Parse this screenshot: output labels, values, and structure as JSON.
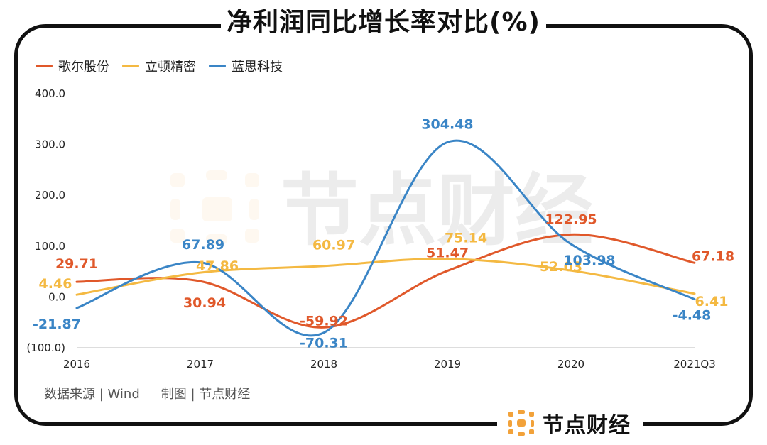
{
  "title": "净利润同比增长率对比(%)",
  "legend": [
    "歌尔股份",
    "立顿精密",
    "蓝思科技"
  ],
  "source_text": "数据来源 | Wind",
  "made_by_text": "制图 | 节点财经",
  "brand_name": "节点财经",
  "watermark_text": "节点财经",
  "colors": {
    "歌尔股份": "#e0582a",
    "立顿精密": "#f4b942",
    "蓝思科技": "#3a85c6",
    "brand_orange": "#f2a23a"
  },
  "chart_data": {
    "type": "line",
    "title": "净利润同比增长率对比(%)",
    "categories": [
      "2016",
      "2017",
      "2018",
      "2019",
      "2020",
      "2021Q3"
    ],
    "y_tick_labels": [
      "(100.0)",
      "0.0",
      "100.0",
      "200.0",
      "300.0",
      "400.0"
    ],
    "y_ticks": [
      -100,
      0,
      100,
      200,
      300,
      400
    ],
    "ylim": [
      -100,
      400
    ],
    "grid": false,
    "legend_position": "top-left",
    "series": [
      {
        "name": "歌尔股份",
        "values": [
          29.71,
          30.94,
          -59.92,
          51.47,
          122.95,
          67.18
        ],
        "labels": [
          "29.71",
          "30.94",
          "-59.92",
          "51.47",
          "122.95",
          "67.18"
        ]
      },
      {
        "name": "立顿精密",
        "values": [
          4.46,
          47.86,
          60.97,
          75.14,
          52.03,
          6.41
        ],
        "labels": [
          "4.46",
          "47.86",
          "60.97",
          "75.14",
          "52.03",
          "6.41"
        ]
      },
      {
        "name": "蓝思科技",
        "values": [
          -21.87,
          67.89,
          -70.31,
          304.48,
          103.98,
          -4.48
        ],
        "labels": [
          "-21.87",
          "67.89",
          "-70.31",
          "304.48",
          "103.98",
          "-4.48"
        ]
      }
    ]
  }
}
